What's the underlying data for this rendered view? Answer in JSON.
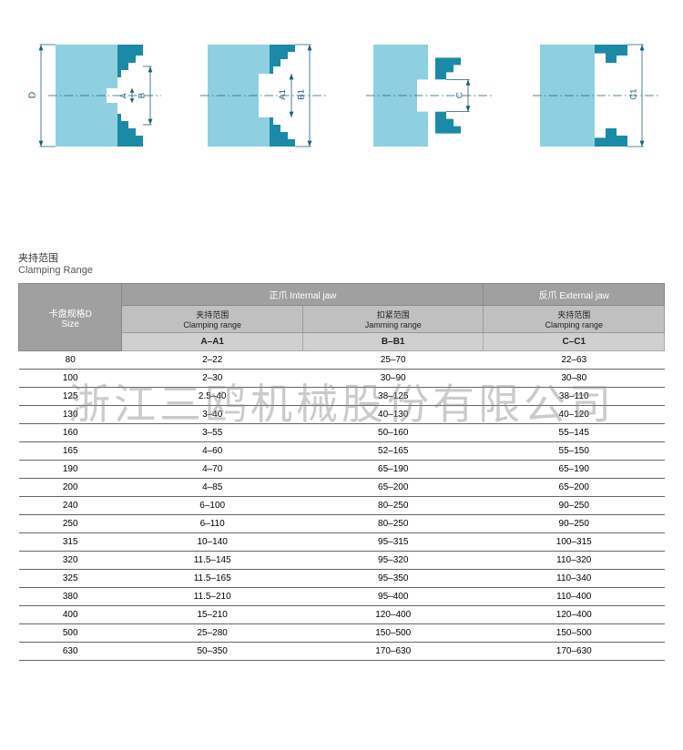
{
  "watermark": "浙江三鸥机械股份有限公司",
  "colors": {
    "chuck_light": "#8ed0e0",
    "chuck_dark": "#1a8aa8",
    "dim_line": "#1b5f7a",
    "bg": "#ffffff"
  },
  "diagrams": {
    "labels": {
      "D": "D",
      "A": "A",
      "B": "B",
      "A1": "A1",
      "B1": "B1",
      "C": "C",
      "C1": "C1"
    }
  },
  "table": {
    "title_cn": "夹持范围",
    "title_en": "Clamping Range",
    "size_label_cn": "卡盘规格D",
    "size_label_en": "Size",
    "group_internal_cn": "正爪  Internal jaw",
    "group_external_cn": "反爪  External jaw",
    "sub_clamp_cn": "夹持范围",
    "sub_clamp_en": "Clamping range",
    "sub_jam_cn": "扣紧范围",
    "sub_jam_en": "Jamming range",
    "col_A": "A–A1",
    "col_B": "B–B1",
    "col_C": "C–C1",
    "rows": [
      {
        "size": "80",
        "a": "2–22",
        "b": "25–70",
        "c": "22–63"
      },
      {
        "size": "100",
        "a": "2–30",
        "b": "30–90",
        "c": "30–80"
      },
      {
        "size": "125",
        "a": "2.5–40",
        "b": "38–125",
        "c": "38–110"
      },
      {
        "size": "130",
        "a": "3–40",
        "b": "40–130",
        "c": "40–120"
      },
      {
        "size": "160",
        "a": "3–55",
        "b": "50–160",
        "c": "55–145"
      },
      {
        "size": "165",
        "a": "4–60",
        "b": "52–165",
        "c": "55–150"
      },
      {
        "size": "190",
        "a": "4–70",
        "b": "65–190",
        "c": "65–190"
      },
      {
        "size": "200",
        "a": "4–85",
        "b": "65–200",
        "c": "65–200"
      },
      {
        "size": "240",
        "a": "6–100",
        "b": "80–250",
        "c": "90–250"
      },
      {
        "size": "250",
        "a": "6–110",
        "b": "80–250",
        "c": "90–250"
      },
      {
        "size": "315",
        "a": "10–140",
        "b": "95–315",
        "c": "100–315"
      },
      {
        "size": "320",
        "a": "11.5–145",
        "b": "95–320",
        "c": "110–320"
      },
      {
        "size": "325",
        "a": "11.5–165",
        "b": "95–350",
        "c": "110–340"
      },
      {
        "size": "380",
        "a": "11.5–210",
        "b": "95–400",
        "c": "110–400"
      },
      {
        "size": "400",
        "a": "15–210",
        "b": "120–400",
        "c": "120–400"
      },
      {
        "size": "500",
        "a": "25–280",
        "b": "150–500",
        "c": "150–500"
      },
      {
        "size": "630",
        "a": "50–350",
        "b": "170–630",
        "c": "170–630"
      }
    ]
  }
}
